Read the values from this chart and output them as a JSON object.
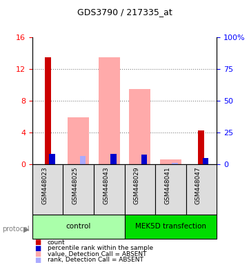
{
  "title": "GDS3790 / 217335_at",
  "samples": [
    "GSM448023",
    "GSM448025",
    "GSM448043",
    "GSM448029",
    "GSM448041",
    "GSM448047"
  ],
  "groups": [
    "control",
    "control",
    "control",
    "MEK5D transfection",
    "MEK5D transfection",
    "MEK5D transfection"
  ],
  "group_labels": [
    "control",
    "MEK5D transfection"
  ],
  "group_colors": [
    "#aaffaa",
    "#00dd00"
  ],
  "count_values": [
    13.5,
    0,
    0,
    0,
    0,
    4.3
  ],
  "count_color": "#cc0000",
  "rank_values": [
    8.0,
    0,
    8.0,
    7.9,
    0,
    4.7
  ],
  "rank_color": "#0000cc",
  "value_absent": [
    0,
    5.9,
    13.5,
    9.5,
    0.6,
    0
  ],
  "value_absent_color": "#ffaaaa",
  "rank_absent": [
    0,
    6.5,
    0,
    0,
    1.1,
    0
  ],
  "rank_absent_color": "#aaaaff",
  "ylim_left": [
    0,
    16
  ],
  "ylim_right": [
    0,
    100
  ],
  "yticks_left": [
    0,
    4,
    8,
    12,
    16
  ],
  "ytick_labels_left": [
    "0",
    "4",
    "8",
    "12",
    "16"
  ],
  "yticks_right": [
    0,
    25,
    50,
    75,
    100
  ],
  "ytick_labels_right": [
    "0",
    "25",
    "50",
    "75",
    "100%"
  ],
  "bar_width": 0.35,
  "protocol_label": "protocol",
  "legend_items": [
    {
      "label": "count",
      "color": "#cc0000",
      "style": "square"
    },
    {
      "label": "percentile rank within the sample",
      "color": "#0000cc",
      "style": "square"
    },
    {
      "label": "value, Detection Call = ABSENT",
      "color": "#ffaaaa",
      "style": "square"
    },
    {
      "label": "rank, Detection Call = ABSENT",
      "color": "#aaaaff",
      "style": "square"
    }
  ]
}
